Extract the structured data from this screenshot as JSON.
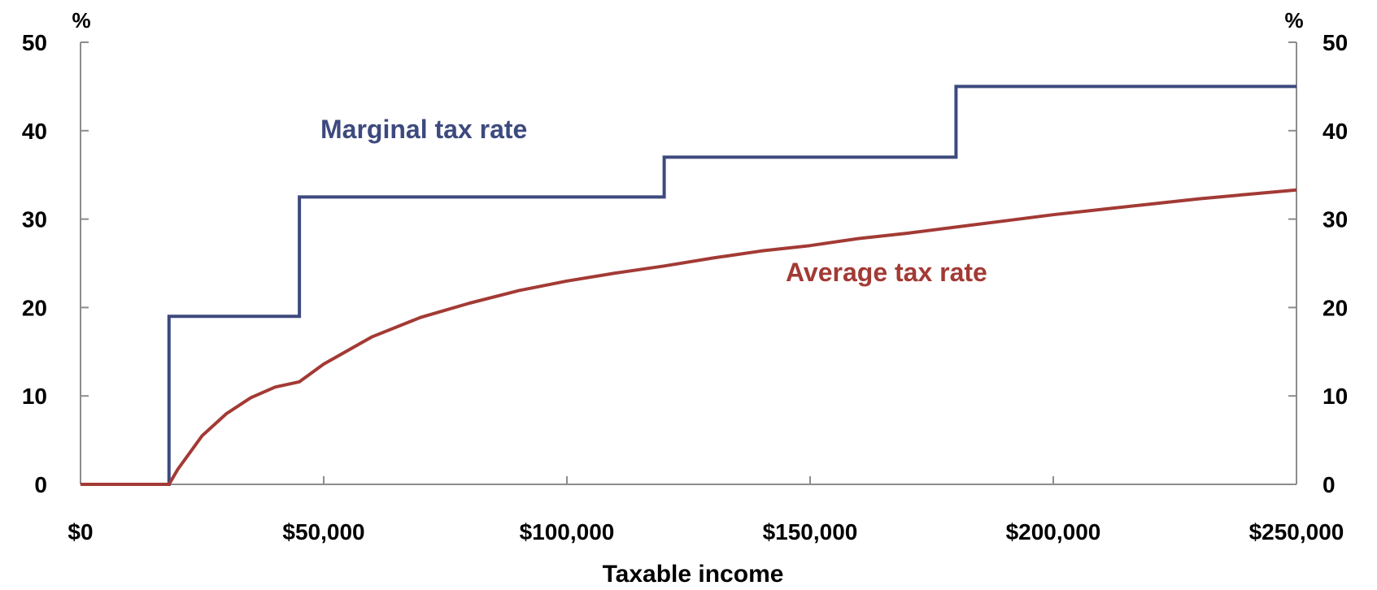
{
  "chart_data": {
    "type": "line",
    "xlabel": "Taxable income",
    "y_unit_left": "%",
    "y_unit_right": "%",
    "xlim": [
      0,
      250000
    ],
    "ylim": [
      0,
      50
    ],
    "x_ticks": [
      0,
      50000,
      100000,
      150000,
      200000,
      250000
    ],
    "x_tick_labels": [
      "$0",
      "$50,000",
      "$100,000",
      "$150,000",
      "$200,000",
      "$250,000"
    ],
    "y_ticks": [
      0,
      10,
      20,
      30,
      40,
      50
    ],
    "y_tick_labels": [
      "0",
      "10",
      "20",
      "30",
      "40",
      "50"
    ],
    "grid": false,
    "series": [
      {
        "name": "Marginal tax rate",
        "color": "#3d4a7e",
        "step": true,
        "x": [
          0,
          18200,
          18200,
          45000,
          45000,
          120000,
          120000,
          180000,
          180000,
          250000
        ],
        "y": [
          0,
          0,
          19,
          19,
          32.5,
          32.5,
          37,
          37,
          45,
          45
        ]
      },
      {
        "name": "Average tax rate",
        "color": "#a33a35",
        "step": false,
        "x": [
          0,
          18200,
          20000,
          25000,
          30000,
          35000,
          40000,
          45000,
          50000,
          60000,
          70000,
          80000,
          90000,
          100000,
          110000,
          120000,
          130000,
          140000,
          150000,
          160000,
          170000,
          180000,
          190000,
          200000,
          210000,
          220000,
          230000,
          240000,
          250000
        ],
        "y": [
          0,
          0,
          1.7,
          5.5,
          8.0,
          9.8,
          11.0,
          11.6,
          13.6,
          16.7,
          18.9,
          20.5,
          21.9,
          23.0,
          23.9,
          24.7,
          25.6,
          26.4,
          27.0,
          27.8,
          28.4,
          29.1,
          29.8,
          30.5,
          31.1,
          31.7,
          32.3,
          32.8,
          33.3
        ]
      }
    ],
    "annotations": [
      "Marginal tax rate",
      "Average tax rate"
    ]
  }
}
